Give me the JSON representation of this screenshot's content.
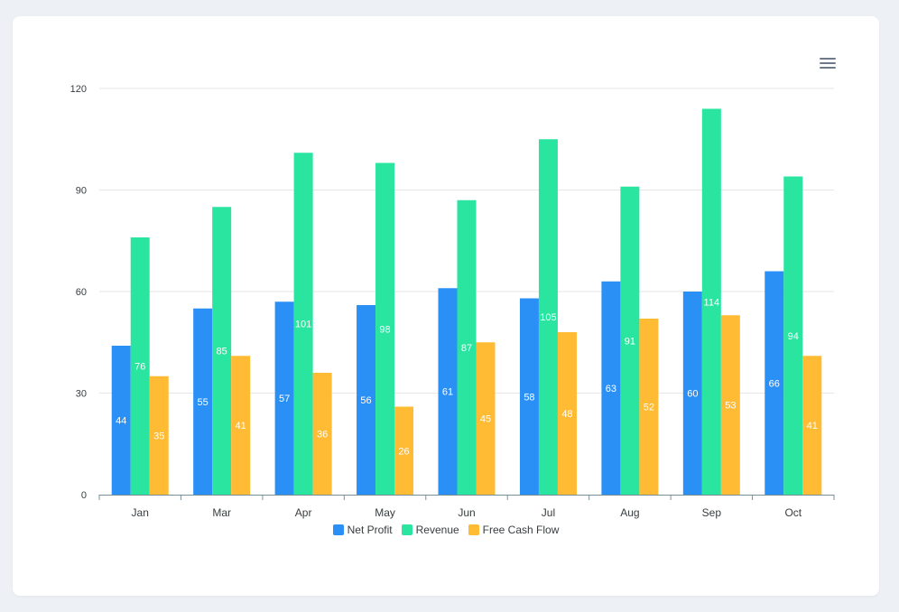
{
  "chart_data": {
    "type": "bar",
    "title": "",
    "xlabel": "",
    "ylabel": "",
    "ylim": [
      0,
      120
    ],
    "yticks": [
      0,
      30,
      60,
      90,
      120
    ],
    "categories": [
      "Jan",
      "Mar",
      "Apr",
      "May",
      "Jun",
      "Jul",
      "Aug",
      "Sep",
      "Oct"
    ],
    "series": [
      {
        "name": "Net Profit",
        "color": "#2b90f5",
        "values": [
          44,
          55,
          57,
          56,
          61,
          58,
          63,
          60,
          66
        ]
      },
      {
        "name": "Revenue",
        "color": "#2ae5a0",
        "values": [
          76,
          85,
          101,
          98,
          87,
          105,
          91,
          114,
          94
        ]
      },
      {
        "name": "Free Cash Flow",
        "color": "#ffbb33",
        "values": [
          35,
          41,
          36,
          26,
          45,
          48,
          52,
          53,
          41
        ]
      }
    ],
    "legend_position": "bottom",
    "grid": true
  },
  "toolbar": {
    "menu_icon": "hamburger-menu-icon"
  }
}
